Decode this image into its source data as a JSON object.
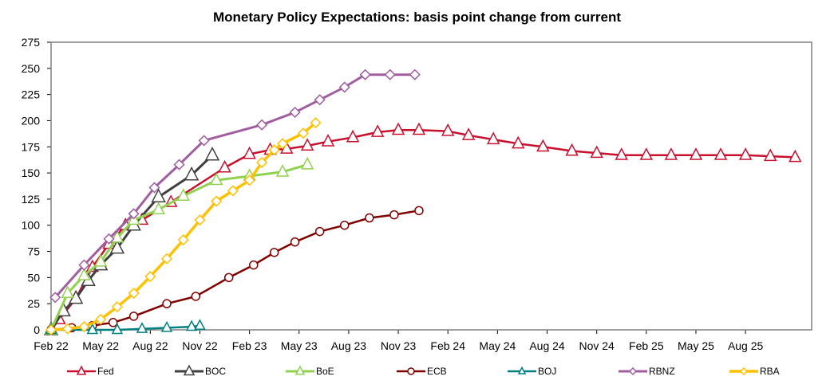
{
  "chart_data": {
    "type": "line",
    "title": "Monetary Policy Expectations: basis point change from current",
    "xlabel": "",
    "ylabel": "",
    "ylim": [
      0,
      275
    ],
    "yticks": [
      0,
      25,
      50,
      75,
      100,
      125,
      150,
      175,
      200,
      225,
      250,
      275
    ],
    "x_unit": "months since Feb 22",
    "xlim": [
      0,
      46
    ],
    "xticks": [
      {
        "label": "Feb 22",
        "x": 0
      },
      {
        "label": "May 22",
        "x": 3
      },
      {
        "label": "Aug 22",
        "x": 6
      },
      {
        "label": "Nov 22",
        "x": 9
      },
      {
        "label": "Feb 23",
        "x": 12
      },
      {
        "label": "May 23",
        "x": 15
      },
      {
        "label": "Aug 23",
        "x": 18
      },
      {
        "label": "Nov 23",
        "x": 21
      },
      {
        "label": "Feb 24",
        "x": 24
      },
      {
        "label": "May 24",
        "x": 27
      },
      {
        "label": "Aug 24",
        "x": 30
      },
      {
        "label": "Nov 24",
        "x": 33
      },
      {
        "label": "Feb 25",
        "x": 36
      },
      {
        "label": "May 25",
        "x": 39
      },
      {
        "label": "Aug 25",
        "x": 42
      }
    ],
    "grid": false,
    "legend_position": "bottom",
    "series": [
      {
        "name": "Fed",
        "color": "#C8102E",
        "marker": "triangle",
        "width": 2.5,
        "markerSize": 7,
        "x": [
          0,
          0.5,
          1.5,
          2.5,
          3.5,
          4.5,
          5.5,
          7.25,
          10.5,
          12,
          13.25,
          14.25,
          15.5,
          16.75,
          18.25,
          19.75,
          21,
          22.25,
          24,
          25.25,
          26.75,
          28.25,
          29.75,
          31.5,
          33,
          34.5,
          36,
          37.5,
          39,
          40.5,
          42,
          43.5,
          45
        ],
        "y": [
          0,
          10,
          30,
          60,
          82,
          100,
          105,
          122,
          155,
          168,
          172,
          173,
          176,
          180,
          184,
          189,
          191,
          191,
          190,
          186,
          182,
          178,
          175,
          171,
          169,
          167,
          167,
          167,
          167,
          167,
          167,
          166,
          165
        ]
      },
      {
        "name": "BOC",
        "color": "#404040",
        "marker": "triangle",
        "width": 3,
        "markerSize": 8,
        "x": [
          0,
          0.75,
          1.5,
          2.25,
          3,
          4,
          5,
          6.5,
          8.5,
          9.75
        ],
        "y": [
          0,
          18,
          30,
          47,
          62,
          78,
          100,
          127,
          148,
          167
        ]
      },
      {
        "name": "BoE",
        "color": "#92D050",
        "marker": "triangle",
        "width": 3,
        "markerSize": 7,
        "x": [
          0,
          1,
          2,
          3,
          4,
          5,
          6.5,
          8,
          10,
          12,
          14,
          15.5
        ],
        "y": [
          0,
          35,
          52,
          65,
          88,
          105,
          115,
          128,
          143,
          147,
          151,
          158
        ]
      },
      {
        "name": "ECB",
        "color": "#800000",
        "marker": "circle",
        "width": 2.5,
        "markerSize": 5,
        "x": [
          0,
          1.25,
          2.5,
          3.75,
          5,
          7,
          8.75,
          10.75,
          12.25,
          13.5,
          14.75,
          16.25,
          17.75,
          19.25,
          20.75,
          22.25
        ],
        "y": [
          0,
          2,
          4,
          7,
          13,
          25,
          32,
          50,
          62,
          74,
          84,
          94,
          100,
          107,
          110,
          114
        ]
      },
      {
        "name": "BOJ",
        "color": "#008080",
        "marker": "triangle",
        "width": 2.5,
        "markerSize": 6,
        "x": [
          0,
          2.5,
          4,
          5.5,
          7,
          8.5,
          9
        ],
        "y": [
          0,
          0,
          0,
          1,
          2,
          3,
          4
        ]
      },
      {
        "name": "RBNZ",
        "color": "#A05DA0",
        "marker": "diamond",
        "width": 3,
        "markerSize": 6,
        "x": [
          0.25,
          2,
          3.5,
          5,
          6.25,
          7.75,
          9.25,
          12.75,
          14.75,
          16.25,
          17.75,
          19,
          20.5,
          22
        ],
        "y": [
          31,
          62,
          87,
          111,
          136,
          158,
          181,
          196,
          208,
          220,
          232,
          244,
          244,
          244
        ]
      },
      {
        "name": "RBA",
        "color": "#FFC000",
        "marker": "diamond",
        "width": 3.5,
        "markerSize": 6,
        "x": [
          0,
          1,
          2,
          3,
          4,
          5,
          6,
          7,
          8,
          9,
          10,
          11,
          12,
          12.75,
          13.5,
          14,
          15.25,
          16
        ],
        "y": [
          0,
          1,
          3,
          10,
          22,
          35,
          51,
          68,
          86,
          105,
          123,
          133,
          143,
          160,
          172,
          178,
          188,
          198
        ]
      }
    ]
  }
}
